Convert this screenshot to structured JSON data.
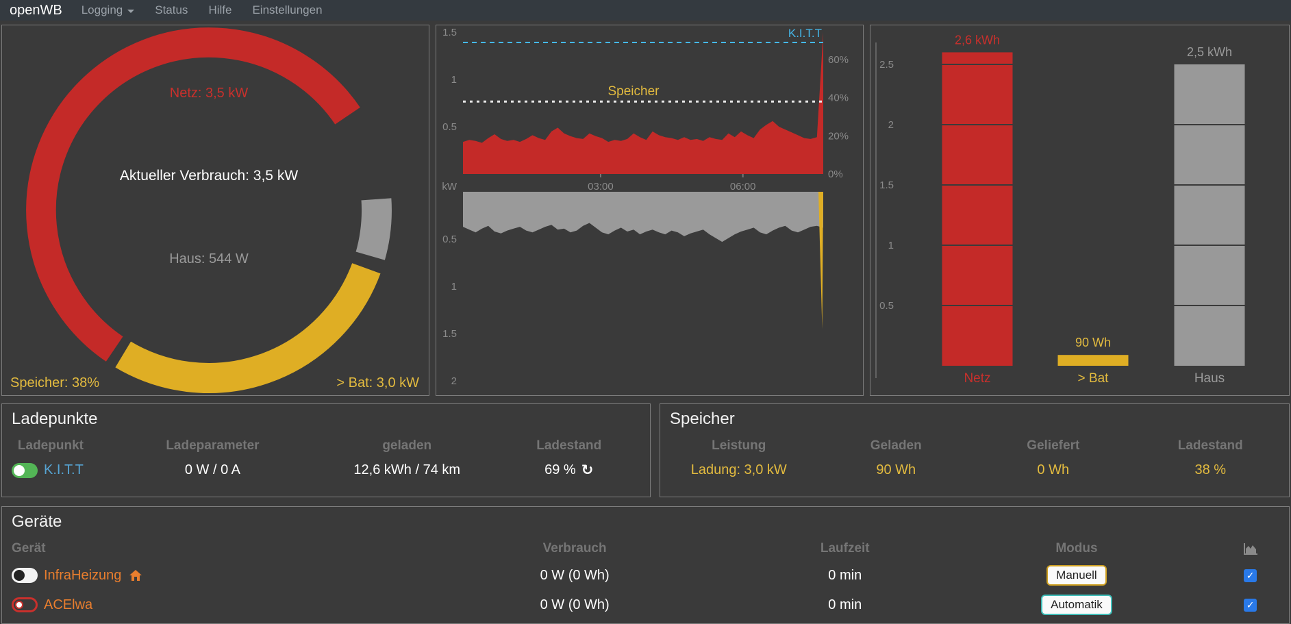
{
  "navbar": {
    "brand": "openWB",
    "items": [
      {
        "label": "Logging",
        "dropdown": true
      },
      {
        "label": "Status",
        "dropdown": false
      },
      {
        "label": "Hilfe",
        "dropdown": false
      },
      {
        "label": "Einstellungen",
        "dropdown": false
      }
    ]
  },
  "icons": {
    "refresh": "↻",
    "checkmark": "✓"
  },
  "donut": {
    "labels": {
      "netz": "Netz: 3,5 kW",
      "center": "Aktueller Verbrauch: 3,5 kW",
      "haus": "Haus: 544 W",
      "speicher": "Speicher: 38%",
      "bat": "> Bat: 3,0 kW"
    },
    "segments": [
      {
        "name": "netz",
        "value_kw": 3.5,
        "color": "#c42a28",
        "start": 214,
        "end": 416
      },
      {
        "name": "haus",
        "value_kw": 0.544,
        "color": "#999999",
        "start": 86,
        "end": 106
      },
      {
        "name": "bat",
        "value_kw": 3.0,
        "color": "#dfae24",
        "start": 110,
        "end": 211
      }
    ]
  },
  "chart_data": [
    {
      "type": "area",
      "ylabel": "kW",
      "ylim": [
        0,
        1.55
      ],
      "yticks": [
        {
          "label": "1.5",
          "value": 1.5
        },
        {
          "label": "1",
          "value": 1
        },
        {
          "label": "0.5",
          "value": 0.5
        }
      ],
      "xticks": [
        {
          "label": "03:00",
          "f": 0.382
        },
        {
          "label": "06:00",
          "f": 0.777
        }
      ],
      "right_axis_ticks": [
        {
          "label": "60%",
          "percent": 60
        },
        {
          "label": "40%",
          "percent": 40
        },
        {
          "label": "20%",
          "percent": 20
        },
        {
          "label": "0%",
          "percent": 0
        }
      ],
      "threshold_lines": [
        {
          "label": "K.I.T.T",
          "percent": 69,
          "line_color": "#45b8ea",
          "label_color": "#45b8ea",
          "style": "dashed"
        },
        {
          "label": "Speicher",
          "percent": 38,
          "line_color": "#e8e8e8",
          "label_color": "#e3bb3f",
          "style": "dotted"
        }
      ],
      "series": [
        {
          "name": "Netz",
          "color": "#c42a28",
          "unit": "kW",
          "values": [
            0.34,
            0.36,
            0.35,
            0.33,
            0.38,
            0.42,
            0.37,
            0.35,
            0.36,
            0.34,
            0.37,
            0.41,
            0.38,
            0.36,
            0.45,
            0.49,
            0.43,
            0.4,
            0.38,
            0.37,
            0.43,
            0.4,
            0.38,
            0.34,
            0.36,
            0.35,
            0.37,
            0.43,
            0.39,
            0.36,
            0.45,
            0.41,
            0.39,
            0.38,
            0.36,
            0.39,
            0.36,
            0.37,
            0.35,
            0.39,
            0.37,
            0.36,
            0.43,
            0.39,
            0.45,
            0.41,
            0.38,
            0.47,
            0.52,
            0.56,
            0.5,
            0.47,
            0.44,
            0.41,
            0.38,
            0.37,
            0.39,
            1.5
          ]
        }
      ]
    },
    {
      "type": "area",
      "inverted": true,
      "yticks": [
        {
          "label": "0.5",
          "value": 0.5
        },
        {
          "label": "1",
          "value": 1
        },
        {
          "label": "1.5",
          "value": 1.5
        },
        {
          "label": "2",
          "value": 2
        }
      ],
      "series": [
        {
          "name": "Haus",
          "color": "#9a9a9a",
          "unit": "kW",
          "values": [
            0.37,
            0.4,
            0.43,
            0.39,
            0.36,
            0.42,
            0.44,
            0.41,
            0.39,
            0.37,
            0.41,
            0.43,
            0.4,
            0.37,
            0.35,
            0.4,
            0.39,
            0.43,
            0.41,
            0.36,
            0.33,
            0.38,
            0.43,
            0.45,
            0.41,
            0.38,
            0.42,
            0.4,
            0.45,
            0.42,
            0.4,
            0.43,
            0.45,
            0.41,
            0.43,
            0.47,
            0.44,
            0.42,
            0.4,
            0.45,
            0.49,
            0.53,
            0.49,
            0.45,
            0.42,
            0.4,
            0.38,
            0.43,
            0.45,
            0.41,
            0.38,
            0.36,
            0.41,
            0.43,
            0.4,
            0.37,
            0.36,
            0.38
          ]
        },
        {
          "name": "> Bat",
          "color": "#dfae24",
          "spike_value_kw": 1.45
        }
      ]
    },
    {
      "type": "bar",
      "categories": [
        "Netz",
        "> Bat",
        "Haus"
      ],
      "values": [
        2.6,
        0.09,
        2.5
      ],
      "value_labels": [
        "2,6 kWh",
        "90 Wh",
        "2,5 kWh"
      ],
      "bar_colors": [
        "#c42a28",
        "#dfae24",
        "#999999"
      ],
      "label_colors": [
        "#c9302c",
        "#e3bb3f",
        "#9a9a9a"
      ],
      "yticks": [
        {
          "label": "2.5",
          "value": 2.5
        },
        {
          "label": "2",
          "value": 2
        },
        {
          "label": "1.5",
          "value": 1.5
        },
        {
          "label": "1",
          "value": 1
        },
        {
          "label": "0.5",
          "value": 0.5
        }
      ],
      "ylim": [
        0,
        3.1
      ]
    }
  ],
  "ladepunkte": {
    "title": "Ladepunkte",
    "headers": [
      "Ladepunkt",
      "Ladeparameter",
      "geladen",
      "Ladestand"
    ],
    "row": {
      "name": "K.I.T.T",
      "ladeparameter": "0 W / 0 A",
      "geladen": "12,6 kWh / 74 km",
      "ladestand": "69 %"
    }
  },
  "speicher": {
    "title": "Speicher",
    "headers": [
      "Leistung",
      "Geladen",
      "Geliefert",
      "Ladestand"
    ],
    "values": [
      "Ladung: 3,0 kW",
      "90 Wh",
      "0 Wh",
      "38 %"
    ]
  },
  "geraete": {
    "title": "Geräte",
    "headers": [
      "Gerät",
      "Verbrauch",
      "Laufzeit",
      "Modus"
    ],
    "rows": [
      {
        "name": "InfraHeizung",
        "verbrauch": "0 W (0 Wh)",
        "laufzeit": "0 min",
        "modus": "Manuell",
        "chart_checked": true
      },
      {
        "name": "ACElwa",
        "verbrauch": "0 W (0 Wh)",
        "laufzeit": "0 min",
        "modus": "Automatik",
        "chart_checked": true
      }
    ]
  },
  "colors": {
    "netz_red": "#c42a28",
    "bat_yellow": "#dfae24",
    "haus_gray": "#999999",
    "text_yellow": "#e3bb3f",
    "kitt_cyan": "#45b8ea",
    "device_orange": "#e97e2e",
    "checkbox_blue": "#2979e8",
    "navbar_bg": "#343a40",
    "panel_bg": "#3a3a3a"
  }
}
